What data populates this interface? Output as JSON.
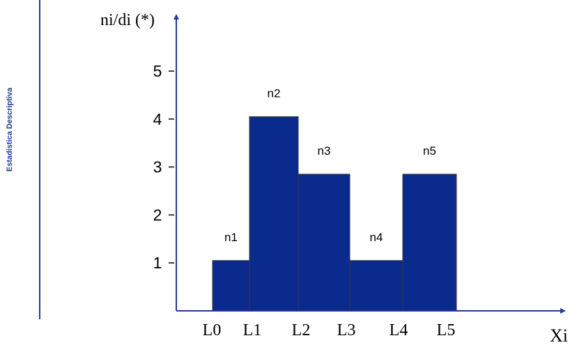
{
  "sidebar": {
    "label": "Estadística Descriptiva",
    "accent_color": "#1f3a93"
  },
  "chart_data": {
    "type": "bar",
    "ylabel": "ni/di (*)",
    "xlabel": "Xi",
    "ylim": [
      0,
      5
    ],
    "y_ticks": [
      "1",
      "2",
      "3",
      "4",
      "5"
    ],
    "x_ticks": [
      "L0",
      "L1",
      "L2",
      "L3",
      "L4",
      "L5"
    ],
    "bar_color": "#0a2a8e",
    "axis_color": "#1f3a93",
    "bars": [
      {
        "label": "n1",
        "value": 1.05,
        "from": "L0",
        "to": "L1"
      },
      {
        "label": "n2",
        "value": 4.05,
        "from": "L1",
        "to": "L2"
      },
      {
        "label": "n3",
        "value": 2.85,
        "from": "L2",
        "to": "L3"
      },
      {
        "label": "n4",
        "value": 1.05,
        "from": "L3",
        "to": "L4"
      },
      {
        "label": "n5",
        "value": 2.85,
        "from": "L4",
        "to": "L5"
      }
    ]
  }
}
